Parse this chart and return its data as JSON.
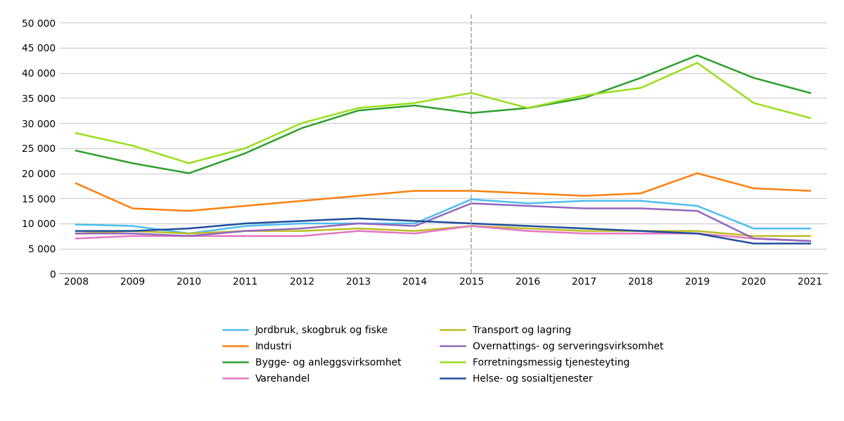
{
  "years": [
    2008,
    2009,
    2010,
    2011,
    2012,
    2013,
    2014,
    2015,
    2016,
    2017,
    2018,
    2019,
    2020,
    2021
  ],
  "series": {
    "Jordbruk, skogbruk og fiske": {
      "color": "#4DBEEE",
      "values": [
        9800,
        9500,
        8000,
        9500,
        10000,
        10000,
        10000,
        14800,
        14000,
        14500,
        14500,
        13500,
        9000,
        9000
      ]
    },
    "Bygge- og anleggsvirksomhet": {
      "color": "#2CA02C",
      "values": [
        24500,
        22000,
        20000,
        24000,
        29000,
        32500,
        33500,
        32000,
        33000,
        35000,
        39000,
        43500,
        39000,
        36000
      ]
    },
    "Transport og lagring": {
      "color": "#BCBD22",
      "values": [
        8000,
        8500,
        8000,
        8500,
        8500,
        9000,
        8500,
        9500,
        9000,
        8500,
        8500,
        8500,
        7500,
        7500
      ]
    },
    "Forretningsmessig tjenesteyting": {
      "color": "#98DF1A",
      "values": [
        28000,
        25500,
        22000,
        25000,
        30000,
        33000,
        34000,
        36000,
        33000,
        35500,
        37000,
        42000,
        34000,
        31000
      ]
    },
    "Industri": {
      "color": "#FF7F0E",
      "values": [
        18000,
        13000,
        12500,
        13500,
        14500,
        15500,
        16500,
        16500,
        16000,
        15500,
        16000,
        20000,
        17000,
        16500
      ]
    },
    "Varehandel": {
      "color": "#E377C2",
      "values": [
        7000,
        7500,
        7500,
        7500,
        7500,
        8500,
        8000,
        9500,
        8500,
        8000,
        8000,
        8000,
        7000,
        6500
      ]
    },
    "Overnattings- og serveringsvirksomhet": {
      "color": "#9467BD",
      "values": [
        8000,
        8000,
        7500,
        8500,
        9000,
        10000,
        9500,
        14000,
        13500,
        13000,
        13000,
        12500,
        7000,
        6500
      ]
    },
    "Helse- og sosialtjenester": {
      "color": "#1F4E9B",
      "values": [
        8500,
        8500,
        9000,
        10000,
        10500,
        11000,
        10500,
        10000,
        9500,
        9000,
        8500,
        8000,
        6000,
        6000
      ]
    }
  },
  "vline_x": 2015,
  "ylim": [
    0,
    52000
  ],
  "yticks": [
    0,
    5000,
    10000,
    15000,
    20000,
    25000,
    30000,
    35000,
    40000,
    45000,
    50000
  ],
  "background_color": "#ffffff",
  "grid_color": "#cccccc",
  "legend_order": [
    0,
    4,
    1,
    5,
    2,
    6,
    3,
    7
  ]
}
